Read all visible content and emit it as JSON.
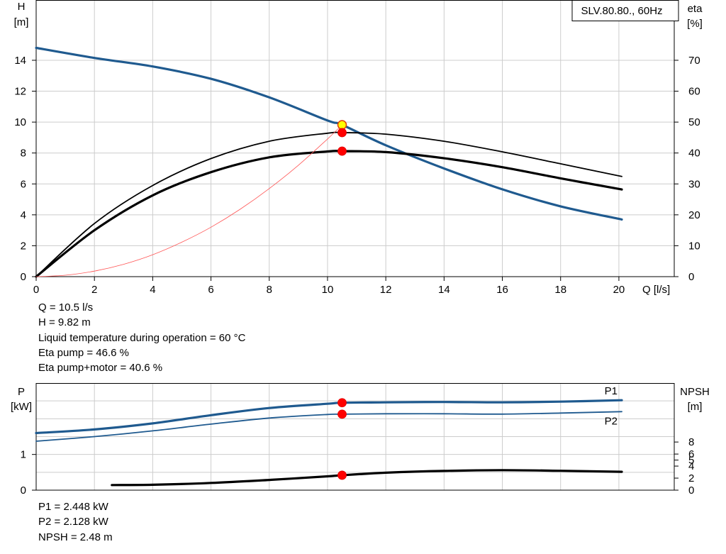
{
  "chart_data": [
    {
      "type": "line",
      "title": "SLV.80.80., 60Hz",
      "xlabel": "Q [l/s]",
      "ylabel_left": [
        "H",
        "[m]"
      ],
      "ylabel_right": [
        "eta",
        "[%]"
      ],
      "xlim": [
        0,
        21.9
      ],
      "xticks": [
        0,
        2,
        4,
        6,
        8,
        10,
        12,
        14,
        16,
        18,
        20
      ],
      "ylim_left": [
        0,
        17.9
      ],
      "yticks_left": [
        0,
        2,
        4,
        6,
        8,
        10,
        12,
        14
      ],
      "ylim_right": [
        0,
        89.5
      ],
      "yticks_right": [
        0,
        10,
        20,
        30,
        40,
        50,
        60,
        70
      ],
      "grid": true,
      "series": [
        {
          "axis": "left",
          "color": "#1f5a8f",
          "width": 3.2,
          "x": [
            0,
            2,
            4,
            6,
            8,
            10,
            10.5,
            12,
            14,
            16,
            18,
            20.1
          ],
          "y": [
            14.8,
            14.15,
            13.6,
            12.8,
            11.6,
            10.1,
            9.82,
            8.5,
            7.0,
            5.65,
            4.55,
            3.7
          ]
        },
        {
          "axis": "right",
          "color": "#000000",
          "width": 1.8,
          "x": [
            0,
            2,
            4,
            6,
            8,
            10,
            10.5,
            12,
            14,
            16,
            18,
            20.1
          ],
          "y": [
            0,
            17.2,
            29.5,
            38.2,
            43.8,
            46.4,
            46.6,
            46.1,
            43.8,
            40.4,
            36.5,
            32.4
          ]
        },
        {
          "axis": "right",
          "color": "#000000",
          "width": 3.2,
          "x": [
            0,
            2,
            4,
            6,
            8,
            10,
            10.5,
            12,
            14,
            16,
            18,
            20.1
          ],
          "y": [
            0,
            15.0,
            26.3,
            33.8,
            38.6,
            40.5,
            40.6,
            40.3,
            38.3,
            35.4,
            31.8,
            28.2
          ]
        },
        {
          "axis": "left",
          "color": "#ff5555",
          "width": 0.8,
          "x": [
            0,
            1,
            2,
            3,
            4,
            5,
            6,
            7,
            8,
            9,
            10,
            10.5
          ],
          "y": [
            0,
            0.09,
            0.36,
            0.8,
            1.42,
            2.23,
            3.2,
            4.36,
            5.7,
            7.21,
            8.91,
            9.82
          ]
        }
      ],
      "markers": [
        {
          "axis": "left",
          "x": 10.5,
          "y": 9.82,
          "color": "#ffff00",
          "stroke": "#e04000"
        },
        {
          "axis": "right",
          "x": 10.5,
          "y": 46.6,
          "color": "#ff0000"
        },
        {
          "axis": "right",
          "x": 10.5,
          "y": 40.6,
          "color": "#ff0000"
        }
      ]
    },
    {
      "type": "line",
      "xlim": [
        0,
        21.9
      ],
      "ylabel_left": [
        "P",
        "[kW]"
      ],
      "ylabel_right": [
        "NPSH",
        "[m]"
      ],
      "ylim_left": [
        0,
        3.0
      ],
      "yticks_left": [
        0,
        1
      ],
      "ylim_right": [
        0,
        17.8
      ],
      "yticks_right": [
        0,
        2,
        4,
        5,
        6,
        8
      ],
      "grid": true,
      "series": [
        {
          "name": "P1",
          "axis": "left",
          "color": "#1f5a8f",
          "width": 3.2,
          "x": [
            0,
            2,
            4,
            6,
            8,
            10,
            10.5,
            12,
            14,
            16,
            18,
            20.1
          ],
          "y": [
            1.6,
            1.7,
            1.87,
            2.1,
            2.3,
            2.42,
            2.448,
            2.46,
            2.47,
            2.46,
            2.48,
            2.52
          ]
        },
        {
          "name": "P2",
          "axis": "left",
          "color": "#1f5a8f",
          "width": 1.8,
          "x": [
            0,
            2,
            4,
            6,
            8,
            10,
            10.5,
            12,
            14,
            16,
            18,
            20.1
          ],
          "y": [
            1.37,
            1.5,
            1.66,
            1.85,
            2.02,
            2.12,
            2.128,
            2.14,
            2.14,
            2.13,
            2.16,
            2.2
          ]
        },
        {
          "axis": "right",
          "color": "#000000",
          "width": 3.2,
          "x": [
            2.6,
            4,
            6,
            8,
            10,
            10.5,
            12,
            14,
            16,
            18,
            20.1
          ],
          "y": [
            0.85,
            0.9,
            1.2,
            1.7,
            2.3,
            2.48,
            2.9,
            3.2,
            3.32,
            3.22,
            3.05
          ]
        }
      ],
      "markers": [
        {
          "axis": "left",
          "x": 10.5,
          "y": 2.448,
          "color": "#ff0000"
        },
        {
          "axis": "left",
          "x": 10.5,
          "y": 2.128,
          "color": "#ff0000"
        },
        {
          "axis": "right",
          "x": 10.5,
          "y": 2.48,
          "color": "#ff0000"
        }
      ]
    }
  ],
  "duty_info": [
    "Q = 10.5 l/s",
    "H = 9.82 m",
    "Liquid temperature during operation = 60 °C",
    "Eta pump = 46.6 %",
    "Eta pump+motor = 40.6 %"
  ],
  "power_info": [
    "P1 = 2.448 kW",
    "P2 = 2.128 kW",
    "NPSH = 2.48 m"
  ]
}
